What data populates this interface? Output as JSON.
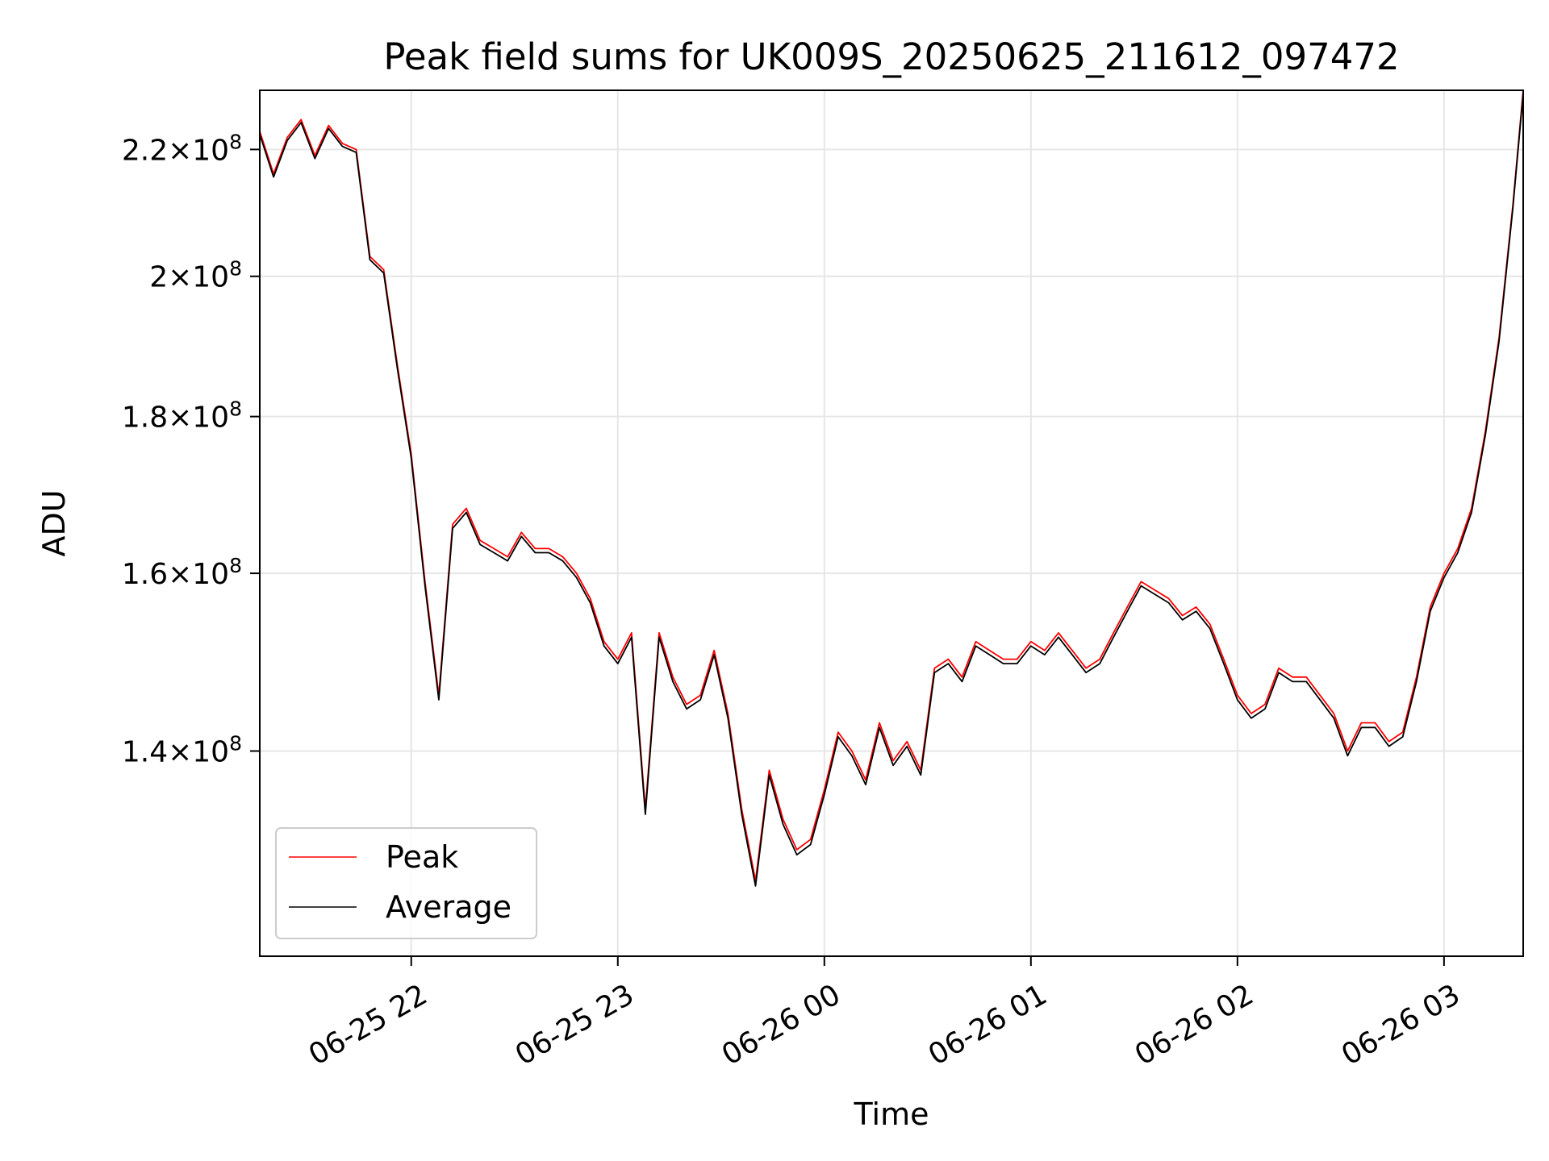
{
  "chart_data": {
    "type": "line",
    "title": "Peak field sums for UK009S_20250625_211612_097472",
    "xlabel": "Time",
    "ylabel": "ADU",
    "y_scale": "log",
    "grid": true,
    "legend_placement": "lower-left",
    "xlim": [
      "2025-06-25 21:16",
      "2025-06-26 03:23"
    ],
    "ylim": [
      120000000,
      230000000
    ],
    "x_ticks": [
      {
        "value": "2025-06-25 22:00",
        "label": "06-25 22"
      },
      {
        "value": "2025-06-25 23:00",
        "label": "06-25 23"
      },
      {
        "value": "2025-06-26 00:00",
        "label": "06-26 00"
      },
      {
        "value": "2025-06-26 01:00",
        "label": "06-26 01"
      },
      {
        "value": "2025-06-26 02:00",
        "label": "06-26 02"
      },
      {
        "value": "2025-06-26 03:00",
        "label": "06-26 03"
      }
    ],
    "y_ticks": [
      {
        "value": 140000000,
        "mantissa": "1.4",
        "base": "10",
        "exp": "8"
      },
      {
        "value": 160000000,
        "mantissa": "1.6",
        "base": "10",
        "exp": "8"
      },
      {
        "value": 180000000,
        "mantissa": "1.8",
        "base": "10",
        "exp": "8"
      },
      {
        "value": 200000000,
        "mantissa": "2",
        "base": "10",
        "exp": "8"
      },
      {
        "value": 220000000,
        "mantissa": "2.2",
        "base": "10",
        "exp": "8"
      }
    ],
    "x": [
      "2025-06-25 21:16",
      "2025-06-25 21:20",
      "2025-06-25 21:24",
      "2025-06-25 21:28",
      "2025-06-25 21:32",
      "2025-06-25 21:36",
      "2025-06-25 21:40",
      "2025-06-25 21:44",
      "2025-06-25 21:48",
      "2025-06-25 21:52",
      "2025-06-25 21:56",
      "2025-06-25 22:00",
      "2025-06-25 22:04",
      "2025-06-25 22:08",
      "2025-06-25 22:12",
      "2025-06-25 22:16",
      "2025-06-25 22:20",
      "2025-06-25 22:24",
      "2025-06-25 22:28",
      "2025-06-25 22:32",
      "2025-06-25 22:36",
      "2025-06-25 22:40",
      "2025-06-25 22:44",
      "2025-06-25 22:48",
      "2025-06-25 22:52",
      "2025-06-25 22:56",
      "2025-06-25 23:00",
      "2025-06-25 23:04",
      "2025-06-25 23:08",
      "2025-06-25 23:12",
      "2025-06-25 23:16",
      "2025-06-25 23:20",
      "2025-06-25 23:24",
      "2025-06-25 23:28",
      "2025-06-25 23:32",
      "2025-06-25 23:36",
      "2025-06-25 23:40",
      "2025-06-25 23:44",
      "2025-06-25 23:48",
      "2025-06-25 23:52",
      "2025-06-25 23:56",
      "2025-06-26 00:00",
      "2025-06-26 00:04",
      "2025-06-26 00:08",
      "2025-06-26 00:12",
      "2025-06-26 00:16",
      "2025-06-26 00:20",
      "2025-06-26 00:24",
      "2025-06-26 00:28",
      "2025-06-26 00:32",
      "2025-06-26 00:36",
      "2025-06-26 00:40",
      "2025-06-26 00:44",
      "2025-06-26 00:48",
      "2025-06-26 00:52",
      "2025-06-26 00:56",
      "2025-06-26 01:00",
      "2025-06-26 01:04",
      "2025-06-26 01:08",
      "2025-06-26 01:12",
      "2025-06-26 01:16",
      "2025-06-26 01:20",
      "2025-06-26 01:24",
      "2025-06-26 01:28",
      "2025-06-26 01:32",
      "2025-06-26 01:36",
      "2025-06-26 01:40",
      "2025-06-26 01:44",
      "2025-06-26 01:48",
      "2025-06-26 01:52",
      "2025-06-26 01:56",
      "2025-06-26 02:00",
      "2025-06-26 02:04",
      "2025-06-26 02:08",
      "2025-06-26 02:12",
      "2025-06-26 02:16",
      "2025-06-26 02:20",
      "2025-06-26 02:24",
      "2025-06-26 02:28",
      "2025-06-26 02:32",
      "2025-06-26 02:36",
      "2025-06-26 02:40",
      "2025-06-26 02:44",
      "2025-06-26 02:48",
      "2025-06-26 02:52",
      "2025-06-26 02:56",
      "2025-06-26 03:00",
      "2025-06-26 03:04",
      "2025-06-26 03:08",
      "2025-06-26 03:12",
      "2025-06-26 03:16",
      "2025-06-26 03:20",
      "2025-06-26 03:23"
    ],
    "series": [
      {
        "name": "Peak",
        "color": "#ff0000",
        "values": [
          223000000,
          216000000,
          222000000,
          225000000,
          219000000,
          224000000,
          221000000,
          220000000,
          203000000,
          201000000,
          187000000,
          175000000,
          159000000,
          146000000,
          166000000,
          168000000,
          164000000,
          163000000,
          162000000,
          165000000,
          163000000,
          163000000,
          162000000,
          160000000,
          157000000,
          152000000,
          150000000,
          153000000,
          134000000,
          153000000,
          148000000,
          145000000,
          146000000,
          151000000,
          144000000,
          134000000,
          127000000,
          138000000,
          133000000,
          130000000,
          131000000,
          136000000,
          142000000,
          140000000,
          137000000,
          143000000,
          139000000,
          141000000,
          138000000,
          149000000,
          150000000,
          148000000,
          152000000,
          151000000,
          150000000,
          150000000,
          152000000,
          151000000,
          153000000,
          151000000,
          149000000,
          150000000,
          153000000,
          156000000,
          159000000,
          158000000,
          157000000,
          155000000,
          156000000,
          154000000,
          150000000,
          146000000,
          144000000,
          145000000,
          149000000,
          148000000,
          148000000,
          146000000,
          144000000,
          140000000,
          143000000,
          143000000,
          141000000,
          142000000,
          148000000,
          156000000,
          160000000,
          163000000,
          168000000,
          178000000,
          191000000,
          211000000,
          230000000
        ]
      },
      {
        "name": "Average",
        "color": "#000000",
        "values": [
          222500000,
          215500000,
          221500000,
          224500000,
          218500000,
          223500000,
          220500000,
          219500000,
          202500000,
          200500000,
          186500000,
          174500000,
          158500000,
          145500000,
          165500000,
          167500000,
          163500000,
          162500000,
          161500000,
          164500000,
          162500000,
          162500000,
          161500000,
          159500000,
          156500000,
          151500000,
          149500000,
          152500000,
          133500000,
          152500000,
          147500000,
          144500000,
          145500000,
          150500000,
          143500000,
          133500000,
          126500000,
          137500000,
          132500000,
          129500000,
          130500000,
          135500000,
          141500000,
          139500000,
          136500000,
          142500000,
          138500000,
          140500000,
          137500000,
          148500000,
          149500000,
          147500000,
          151500000,
          150500000,
          149500000,
          149500000,
          151500000,
          150500000,
          152500000,
          150500000,
          148500000,
          149500000,
          152500000,
          155500000,
          158500000,
          157500000,
          156500000,
          154500000,
          155500000,
          153500000,
          149500000,
          145500000,
          143500000,
          144500000,
          148500000,
          147500000,
          147500000,
          145500000,
          143500000,
          139500000,
          142500000,
          142500000,
          140500000,
          141500000,
          147500000,
          155500000,
          159500000,
          162500000,
          167500000,
          177500000,
          190500000,
          210500000,
          229500000
        ]
      }
    ]
  }
}
